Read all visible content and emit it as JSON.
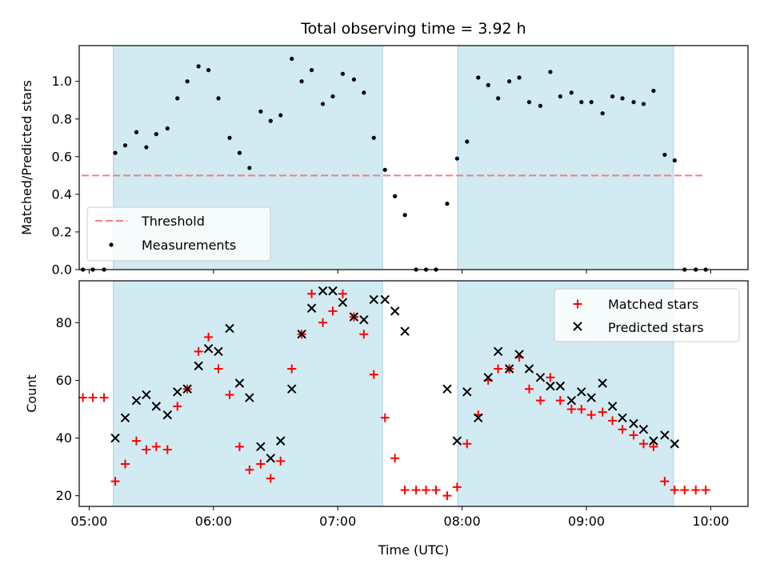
{
  "chart_data": [
    {
      "type": "scatter",
      "title": "Total observing time = 3.92 h",
      "xlabel": "",
      "ylabel": "Matched/Predicted stars",
      "xlim": [
        -0.08,
        5.3
      ],
      "ylim": [
        0.0,
        1.19
      ],
      "x_ticks": [
        "05:00",
        "06:00",
        "07:00",
        "08:00",
        "09:00",
        "10:00"
      ],
      "y_ticks": [
        "0.0",
        "0.2",
        "0.4",
        "0.6",
        "0.8",
        "1.0"
      ],
      "y_tick_values": [
        0.0,
        0.2,
        0.4,
        0.6,
        0.8,
        1.0
      ],
      "shaded_regions": [
        [
          0.195,
          2.36
        ],
        [
          2.965,
          4.7
        ]
      ],
      "shade_color": "#add8e6",
      "threshold": {
        "label": "Threshold",
        "value": 0.5,
        "x_range": [
          -0.06,
          4.95
        ],
        "color": "#f08080"
      },
      "legend_placement": "lower-left",
      "series": [
        {
          "name": "Measurements",
          "marker": "dot",
          "color": "#000000",
          "x": [
            -0.05,
            0.03,
            0.12,
            0.21,
            0.29,
            0.38,
            0.46,
            0.54,
            0.63,
            0.71,
            0.79,
            0.88,
            0.96,
            1.04,
            1.13,
            1.21,
            1.29,
            1.38,
            1.46,
            1.54,
            1.63,
            1.71,
            1.79,
            1.88,
            1.96,
            2.04,
            2.13,
            2.21,
            2.29,
            2.38,
            2.46,
            2.54,
            2.63,
            2.71,
            2.79,
            2.88,
            2.96,
            3.04,
            3.13,
            3.21,
            3.29,
            3.38,
            3.46,
            3.54,
            3.63,
            3.71,
            3.79,
            3.88,
            3.96,
            4.04,
            4.13,
            4.21,
            4.29,
            4.38,
            4.46,
            4.54,
            4.63,
            4.71,
            4.79,
            4.88,
            4.96
          ],
          "y": [
            0.0,
            0.0,
            0.0,
            0.62,
            0.66,
            0.73,
            0.65,
            0.72,
            0.75,
            0.91,
            1.0,
            1.08,
            1.06,
            0.91,
            0.7,
            0.62,
            0.54,
            0.84,
            0.79,
            0.82,
            1.12,
            1.0,
            1.06,
            0.88,
            0.92,
            1.04,
            1.01,
            0.94,
            0.7,
            0.53,
            0.39,
            0.29,
            0.0,
            0.0,
            0.0,
            0.35,
            0.59,
            0.68,
            1.02,
            0.98,
            0.91,
            1.0,
            1.02,
            0.89,
            0.87,
            1.05,
            0.92,
            0.94,
            0.89,
            0.89,
            0.83,
            0.92,
            0.91,
            0.89,
            0.88,
            0.95,
            0.61,
            0.58,
            0.0,
            0.0,
            0.0
          ]
        }
      ]
    },
    {
      "type": "scatter",
      "title": "",
      "xlabel": "Time (UTC)",
      "ylabel": "Count",
      "xlim": [
        -0.08,
        5.3
      ],
      "ylim": [
        16.3,
        94.5
      ],
      "x_ticks": [
        "05:00",
        "06:00",
        "07:00",
        "08:00",
        "09:00",
        "10:00"
      ],
      "y_ticks": [
        "20",
        "40",
        "60",
        "80"
      ],
      "y_tick_values": [
        20,
        40,
        60,
        80
      ],
      "shaded_regions": [
        [
          0.195,
          2.36
        ],
        [
          2.965,
          4.7
        ]
      ],
      "shade_color": "#add8e6",
      "legend_placement": "upper-right",
      "series": [
        {
          "name": "Matched stars",
          "marker": "plus",
          "color": "#ff0000",
          "x": [
            -0.05,
            0.03,
            0.12,
            0.21,
            0.29,
            0.38,
            0.46,
            0.54,
            0.63,
            0.71,
            0.79,
            0.88,
            0.96,
            1.04,
            1.13,
            1.21,
            1.29,
            1.38,
            1.46,
            1.54,
            1.63,
            1.71,
            1.79,
            1.88,
            1.96,
            2.04,
            2.13,
            2.21,
            2.29,
            2.38,
            2.46,
            2.54,
            2.63,
            2.71,
            2.79,
            2.88,
            2.96,
            3.04,
            3.13,
            3.21,
            3.29,
            3.38,
            3.46,
            3.54,
            3.63,
            3.71,
            3.79,
            3.88,
            3.96,
            4.04,
            4.13,
            4.21,
            4.29,
            4.38,
            4.46,
            4.54,
            4.63,
            4.71,
            4.79,
            4.88,
            4.96
          ],
          "y": [
            54,
            54,
            54,
            25,
            31,
            39,
            36,
            37,
            36,
            51,
            57,
            70,
            75,
            64,
            55,
            37,
            29,
            31,
            26,
            32,
            64,
            76,
            90,
            80,
            84,
            90,
            82,
            76,
            62,
            47,
            33,
            22,
            22,
            22,
            22,
            20,
            23,
            38,
            48,
            60,
            64,
            64,
            68,
            57,
            53,
            61,
            53,
            50,
            50,
            48,
            49,
            46,
            43,
            41,
            38,
            37,
            25,
            22,
            22,
            22,
            22
          ]
        },
        {
          "name": "Predicted stars",
          "marker": "x",
          "color": "#000000",
          "x": [
            0.21,
            0.29,
            0.38,
            0.46,
            0.54,
            0.63,
            0.71,
            0.79,
            0.88,
            0.96,
            1.04,
            1.13,
            1.21,
            1.29,
            1.38,
            1.46,
            1.54,
            1.63,
            1.71,
            1.79,
            1.88,
            1.96,
            2.04,
            2.13,
            2.21,
            2.29,
            2.38,
            2.46,
            2.54,
            2.88,
            2.96,
            3.04,
            3.13,
            3.21,
            3.29,
            3.38,
            3.46,
            3.54,
            3.63,
            3.71,
            3.79,
            3.88,
            3.96,
            4.04,
            4.13,
            4.21,
            4.29,
            4.38,
            4.46,
            4.54,
            4.63,
            4.71
          ],
          "y": [
            40,
            47,
            53,
            55,
            51,
            48,
            56,
            57,
            65,
            71,
            70,
            78,
            59,
            54,
            37,
            33,
            39,
            57,
            76,
            85,
            91,
            91,
            87,
            82,
            81,
            88,
            88,
            84,
            77,
            57,
            39,
            56,
            47,
            61,
            70,
            64,
            69,
            64,
            61,
            58,
            58,
            53,
            56,
            54,
            59,
            51,
            47,
            45,
            43,
            39,
            41,
            38
          ]
        }
      ]
    }
  ]
}
